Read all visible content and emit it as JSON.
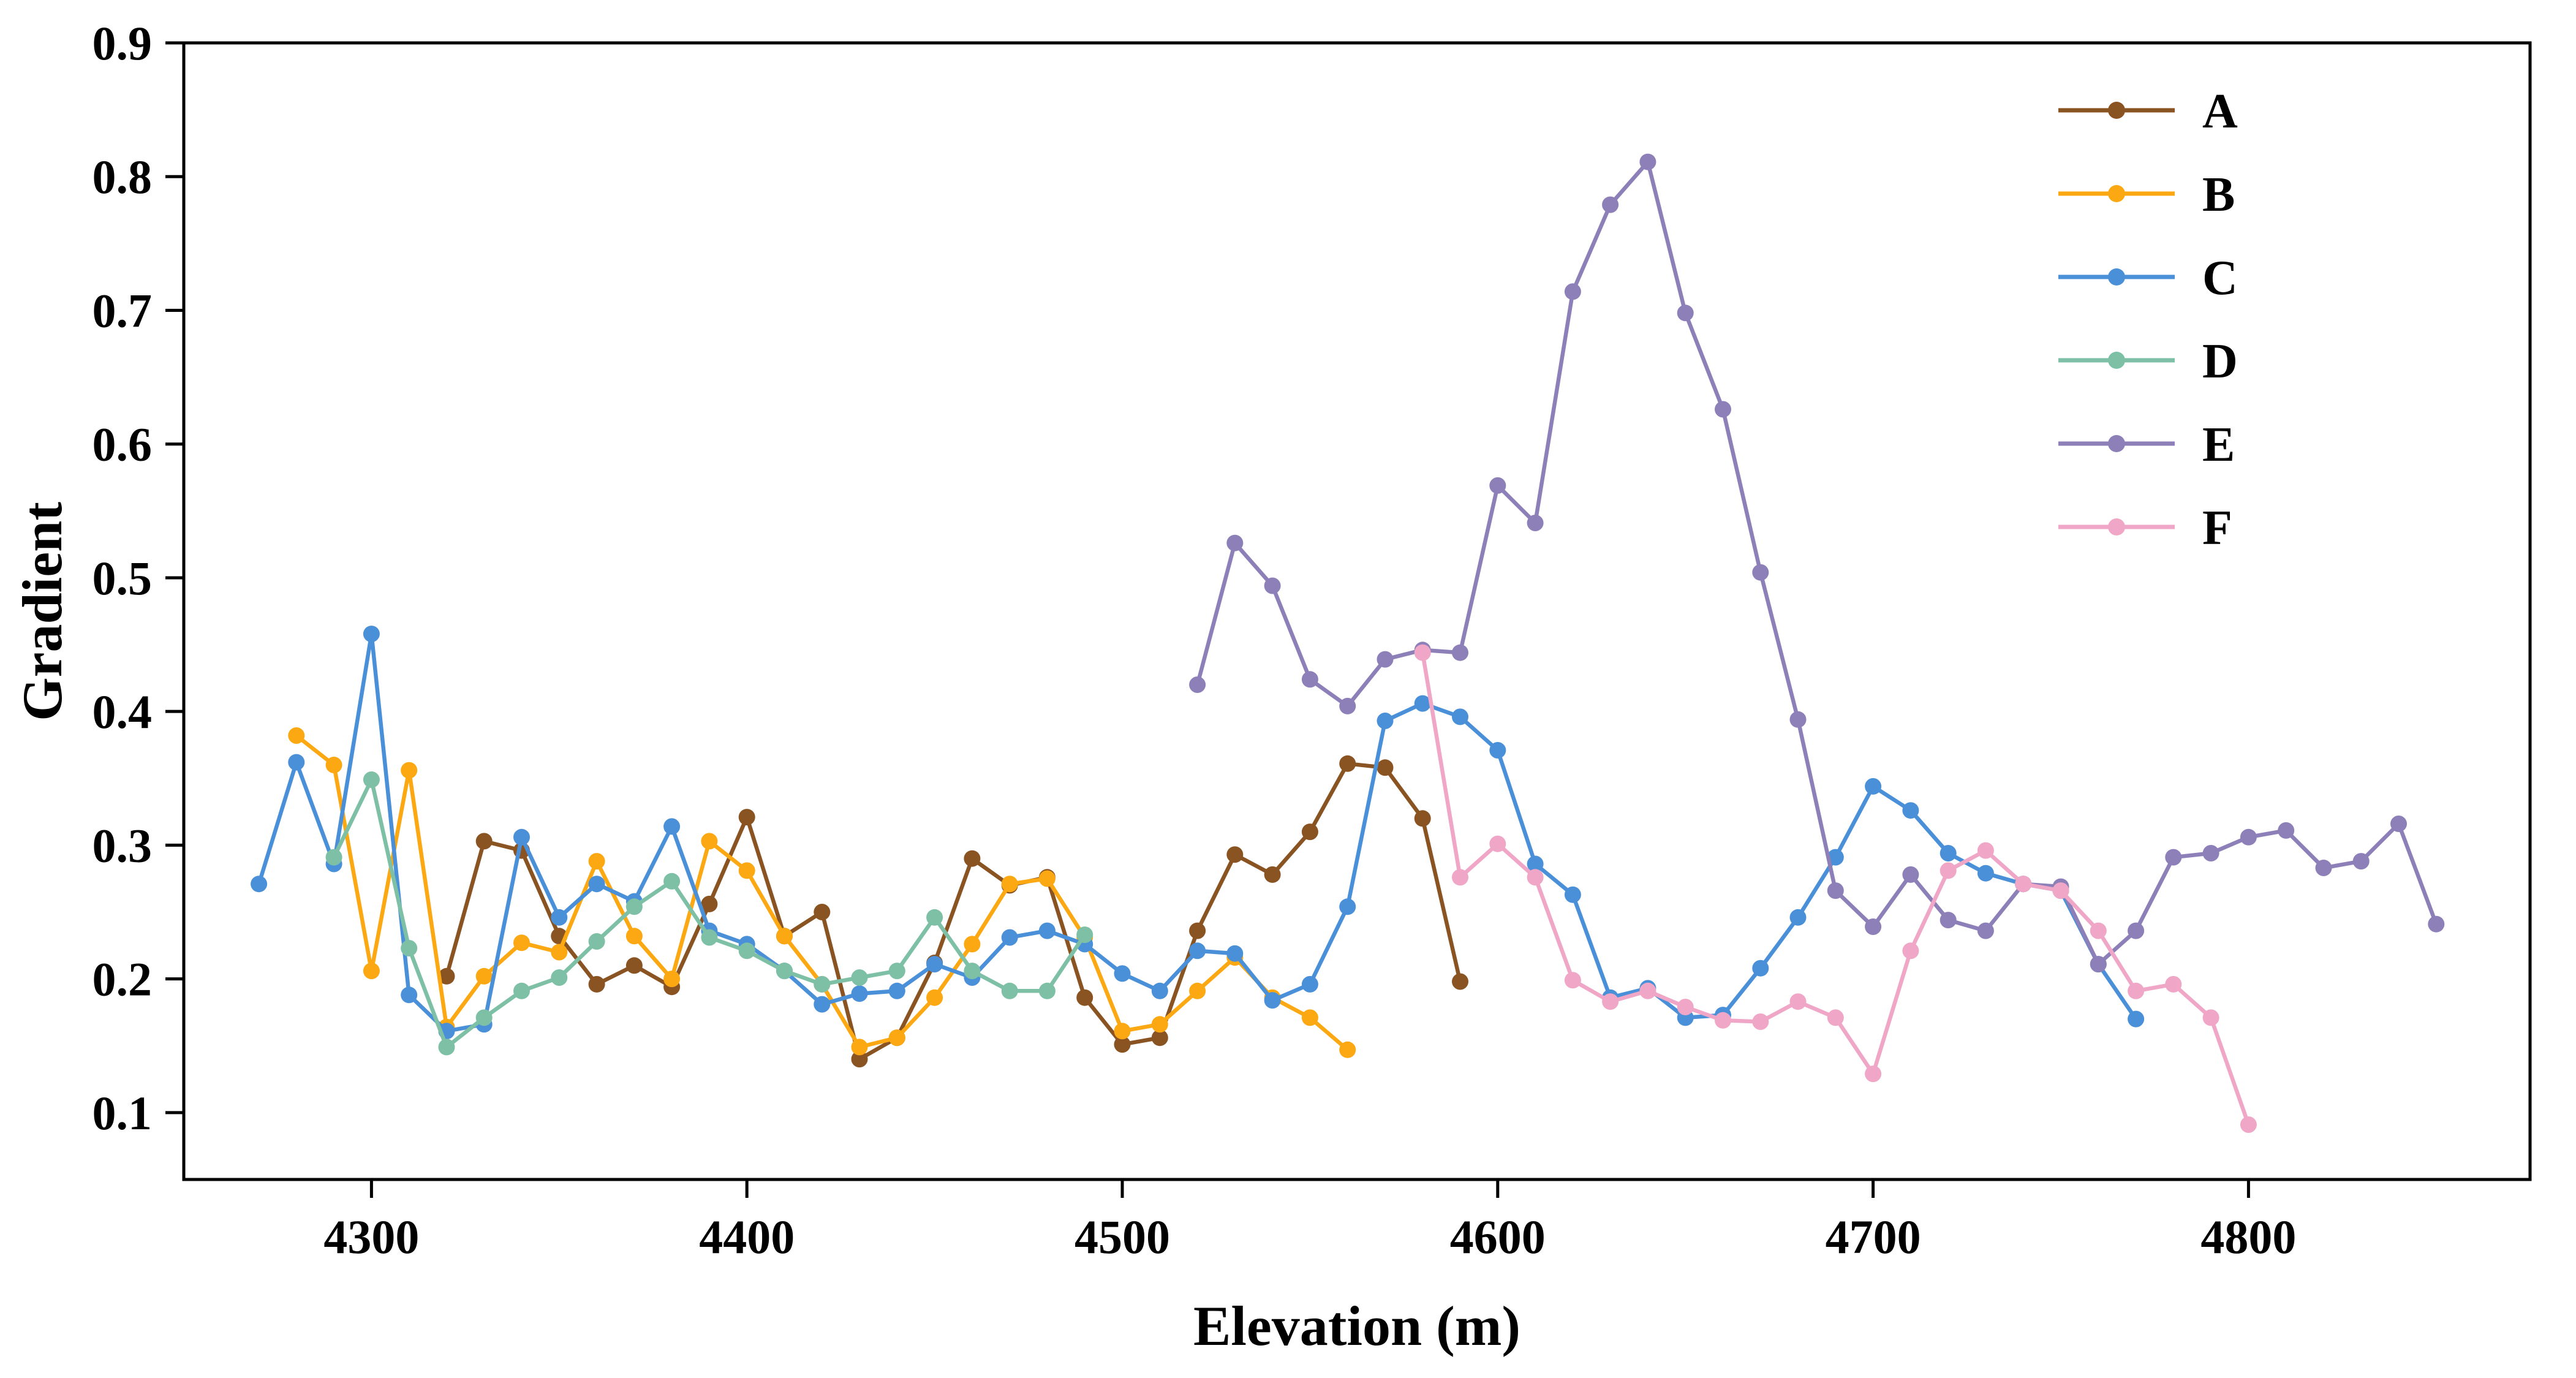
{
  "figure": {
    "background": "#ffffff",
    "axis_color": "#000000"
  },
  "chart_data": {
    "type": "line",
    "title": "",
    "xlabel": "Elevation (m)",
    "ylabel": "Gradient",
    "xlim": [
      4250,
      4875
    ],
    "ylim": [
      0.05,
      0.9
    ],
    "xticks": [
      4300,
      4400,
      4500,
      4600,
      4700,
      4800
    ],
    "yticks": [
      0.1,
      0.2,
      0.3,
      0.4,
      0.5,
      0.6,
      0.7,
      0.8,
      0.9
    ],
    "grid": false,
    "legend": {
      "position": "top-right",
      "entries": [
        "A",
        "B",
        "C",
        "D",
        "E",
        "F"
      ]
    },
    "series": [
      {
        "name": "A",
        "color": "#8a5322",
        "marker": "circle",
        "points": [
          [
            4320,
            0.202
          ],
          [
            4330,
            0.303
          ],
          [
            4340,
            0.296
          ],
          [
            4350,
            0.232
          ],
          [
            4360,
            0.196
          ],
          [
            4370,
            0.21
          ],
          [
            4380,
            0.194
          ],
          [
            4390,
            0.256
          ],
          [
            4400,
            0.321
          ],
          [
            4410,
            0.232
          ],
          [
            4420,
            0.25
          ],
          [
            4430,
            0.14
          ],
          [
            4440,
            0.156
          ],
          [
            4450,
            0.212
          ],
          [
            4460,
            0.29
          ],
          [
            4470,
            0.27
          ],
          [
            4480,
            0.276
          ],
          [
            4490,
            0.186
          ],
          [
            4500,
            0.151
          ],
          [
            4510,
            0.156
          ],
          [
            4520,
            0.236
          ],
          [
            4530,
            0.293
          ],
          [
            4540,
            0.278
          ],
          [
            4550,
            0.31
          ],
          [
            4560,
            0.361
          ],
          [
            4570,
            0.358
          ],
          [
            4580,
            0.32
          ],
          [
            4590,
            0.198
          ]
        ]
      },
      {
        "name": "B",
        "color": "#fca812",
        "marker": "circle",
        "points": [
          [
            4280,
            0.382
          ],
          [
            4290,
            0.36
          ],
          [
            4300,
            0.206
          ],
          [
            4310,
            0.356
          ],
          [
            4320,
            0.164
          ],
          [
            4330,
            0.202
          ],
          [
            4340,
            0.227
          ],
          [
            4350,
            0.22
          ],
          [
            4360,
            0.288
          ],
          [
            4370,
            0.232
          ],
          [
            4380,
            0.2
          ],
          [
            4390,
            0.303
          ],
          [
            4400,
            0.281
          ],
          [
            4410,
            0.232
          ],
          [
            4420,
            0.196
          ],
          [
            4430,
            0.149
          ],
          [
            4440,
            0.156
          ],
          [
            4450,
            0.186
          ],
          [
            4460,
            0.226
          ],
          [
            4470,
            0.271
          ],
          [
            4480,
            0.275
          ],
          [
            4490,
            0.231
          ],
          [
            4500,
            0.161
          ],
          [
            4510,
            0.166
          ],
          [
            4520,
            0.191
          ],
          [
            4530,
            0.216
          ],
          [
            4540,
            0.186
          ],
          [
            4550,
            0.171
          ],
          [
            4560,
            0.147
          ]
        ]
      },
      {
        "name": "C",
        "color": "#4a90d9",
        "marker": "circle",
        "points": [
          [
            4270,
            0.271
          ],
          [
            4280,
            0.362
          ],
          [
            4290,
            0.286
          ],
          [
            4300,
            0.458
          ],
          [
            4310,
            0.188
          ],
          [
            4320,
            0.161
          ],
          [
            4330,
            0.166
          ],
          [
            4340,
            0.306
          ],
          [
            4350,
            0.246
          ],
          [
            4360,
            0.271
          ],
          [
            4370,
            0.258
          ],
          [
            4380,
            0.314
          ],
          [
            4390,
            0.236
          ],
          [
            4400,
            0.226
          ],
          [
            4410,
            0.206
          ],
          [
            4420,
            0.181
          ],
          [
            4430,
            0.189
          ],
          [
            4440,
            0.191
          ],
          [
            4450,
            0.211
          ],
          [
            4460,
            0.201
          ],
          [
            4470,
            0.231
          ],
          [
            4480,
            0.236
          ],
          [
            4490,
            0.226
          ],
          [
            4500,
            0.204
          ],
          [
            4510,
            0.191
          ],
          [
            4520,
            0.221
          ],
          [
            4530,
            0.219
          ],
          [
            4540,
            0.184
          ],
          [
            4550,
            0.196
          ],
          [
            4560,
            0.254
          ],
          [
            4570,
            0.393
          ],
          [
            4580,
            0.406
          ],
          [
            4590,
            0.396
          ],
          [
            4600,
            0.371
          ],
          [
            4610,
            0.286
          ],
          [
            4620,
            0.263
          ],
          [
            4630,
            0.186
          ],
          [
            4640,
            0.193
          ],
          [
            4650,
            0.171
          ],
          [
            4660,
            0.173
          ],
          [
            4670,
            0.208
          ],
          [
            4680,
            0.246
          ],
          [
            4690,
            0.291
          ],
          [
            4700,
            0.344
          ],
          [
            4710,
            0.326
          ],
          [
            4720,
            0.294
          ],
          [
            4730,
            0.279
          ],
          [
            4740,
            0.271
          ],
          [
            4750,
            0.266
          ],
          [
            4760,
            0.211
          ],
          [
            4770,
            0.17
          ]
        ]
      },
      {
        "name": "D",
        "color": "#7dc0a6",
        "marker": "circle",
        "points": [
          [
            4290,
            0.291
          ],
          [
            4300,
            0.349
          ],
          [
            4310,
            0.223
          ],
          [
            4320,
            0.149
          ],
          [
            4330,
            0.171
          ],
          [
            4340,
            0.191
          ],
          [
            4350,
            0.201
          ],
          [
            4360,
            0.228
          ],
          [
            4370,
            0.254
          ],
          [
            4380,
            0.273
          ],
          [
            4390,
            0.231
          ],
          [
            4400,
            0.221
          ],
          [
            4410,
            0.206
          ],
          [
            4420,
            0.196
          ],
          [
            4430,
            0.201
          ],
          [
            4440,
            0.206
          ],
          [
            4450,
            0.246
          ],
          [
            4460,
            0.206
          ],
          [
            4470,
            0.191
          ],
          [
            4480,
            0.191
          ],
          [
            4490,
            0.233
          ]
        ]
      },
      {
        "name": "E",
        "color": "#8d80b8",
        "marker": "circle",
        "points": [
          [
            4520,
            0.42
          ],
          [
            4530,
            0.526
          ],
          [
            4540,
            0.494
          ],
          [
            4550,
            0.424
          ],
          [
            4560,
            0.404
          ],
          [
            4570,
            0.439
          ],
          [
            4580,
            0.446
          ],
          [
            4590,
            0.444
          ],
          [
            4600,
            0.569
          ],
          [
            4610,
            0.541
          ],
          [
            4620,
            0.714
          ],
          [
            4630,
            0.779
          ],
          [
            4640,
            0.811
          ],
          [
            4650,
            0.698
          ],
          [
            4660,
            0.626
          ],
          [
            4670,
            0.504
          ],
          [
            4680,
            0.394
          ],
          [
            4690,
            0.266
          ],
          [
            4700,
            0.239
          ],
          [
            4710,
            0.278
          ],
          [
            4720,
            0.244
          ],
          [
            4730,
            0.236
          ],
          [
            4740,
            0.271
          ],
          [
            4750,
            0.269
          ],
          [
            4760,
            0.211
          ],
          [
            4770,
            0.236
          ],
          [
            4780,
            0.291
          ],
          [
            4790,
            0.294
          ],
          [
            4800,
            0.306
          ],
          [
            4810,
            0.311
          ],
          [
            4820,
            0.283
          ],
          [
            4830,
            0.288
          ],
          [
            4840,
            0.316
          ],
          [
            4850,
            0.241
          ]
        ]
      },
      {
        "name": "F",
        "color": "#f0a6c6",
        "marker": "circle",
        "points": [
          [
            4580,
            0.444
          ],
          [
            4590,
            0.276
          ],
          [
            4600,
            0.301
          ],
          [
            4610,
            0.276
          ],
          [
            4620,
            0.199
          ],
          [
            4630,
            0.183
          ],
          [
            4640,
            0.191
          ],
          [
            4650,
            0.179
          ],
          [
            4660,
            0.169
          ],
          [
            4670,
            0.168
          ],
          [
            4680,
            0.183
          ],
          [
            4690,
            0.171
          ],
          [
            4700,
            0.129
          ],
          [
            4710,
            0.221
          ],
          [
            4720,
            0.281
          ],
          [
            4730,
            0.296
          ],
          [
            4740,
            0.271
          ],
          [
            4750,
            0.266
          ],
          [
            4760,
            0.236
          ],
          [
            4770,
            0.191
          ],
          [
            4780,
            0.196
          ],
          [
            4790,
            0.171
          ],
          [
            4800,
            0.091
          ]
        ]
      }
    ]
  }
}
